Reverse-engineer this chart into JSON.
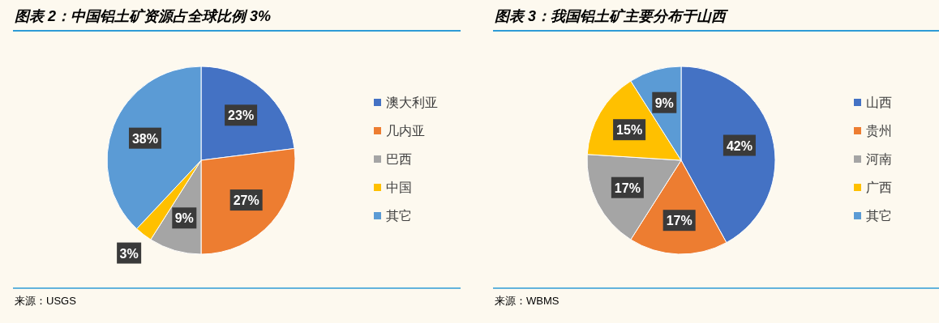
{
  "chart_data": [
    {
      "type": "pie",
      "title": "图表 2：中国铝土矿资源占全球比例 3%",
      "categories": [
        "澳大利亚",
        "几内亚",
        "巴西",
        "中国",
        "其它"
      ],
      "values": [
        23,
        27,
        9,
        3,
        38
      ],
      "colors": [
        "#4472c4",
        "#ed7d31",
        "#a5a5a5",
        "#ffc000",
        "#5b9bd5"
      ],
      "value_labels": [
        "23%",
        "27%",
        "9%",
        "3%",
        "38%"
      ],
      "legend": "right",
      "annotations": [
        "来源：USGS"
      ]
    },
    {
      "type": "pie",
      "title": "图表 3：我国铝土矿主要分布于山西",
      "categories": [
        "山西",
        "贵州",
        "河南",
        "广西",
        "其它"
      ],
      "values": [
        42,
        17,
        17,
        15,
        9
      ],
      "colors": [
        "#4472c4",
        "#ed7d31",
        "#a5a5a5",
        "#ffc000",
        "#5b9bd5"
      ],
      "value_labels": [
        "42%",
        "17%",
        "17%",
        "15%",
        "9%"
      ],
      "legend": "right",
      "annotations": [
        "来源：WBMS"
      ]
    }
  ]
}
